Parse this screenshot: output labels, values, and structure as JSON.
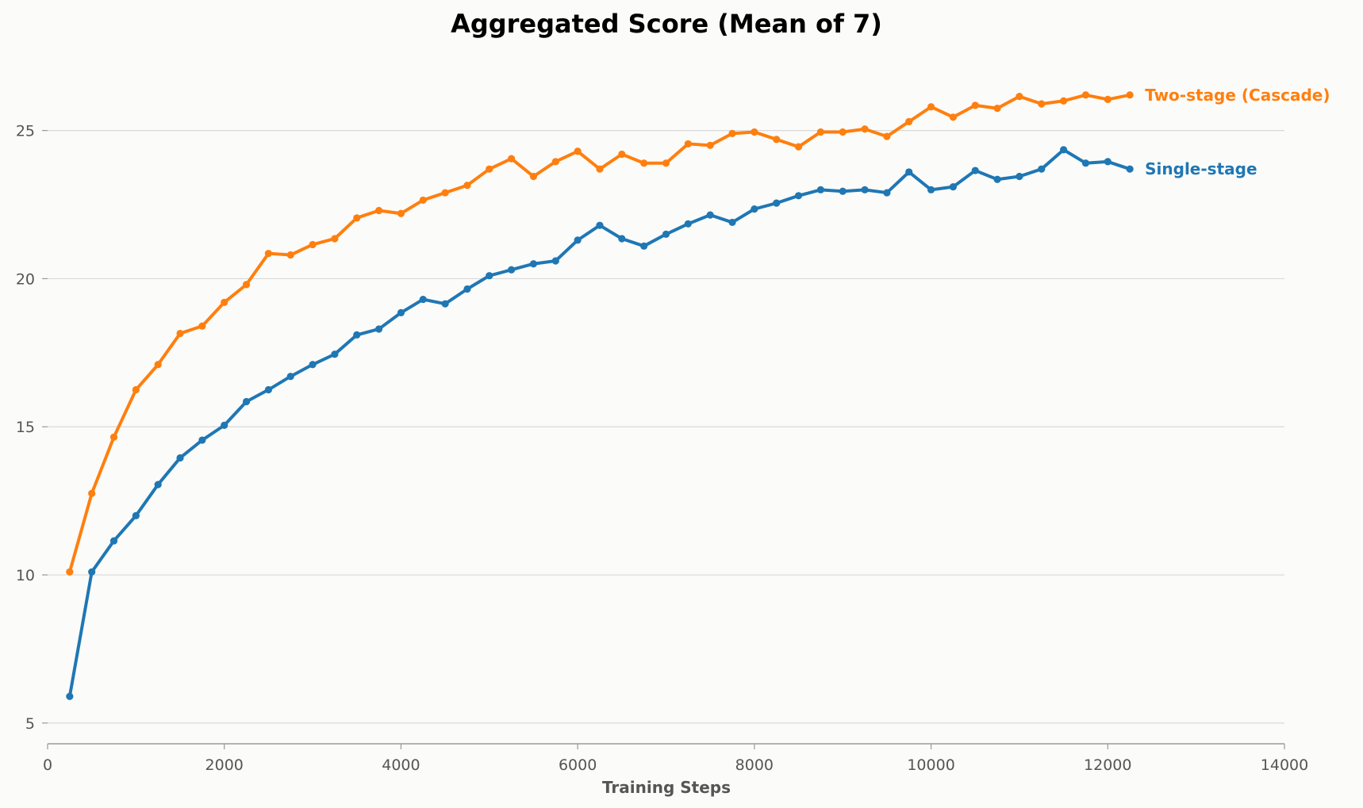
{
  "chart_data": {
    "type": "line",
    "title": "Aggregated Score (Mean of 7)",
    "xlabel": "Training Steps",
    "ylabel": "",
    "xlim": [
      0,
      14000
    ],
    "ylim": [
      4.3,
      27.8
    ],
    "xticks": [
      0,
      2000,
      4000,
      6000,
      8000,
      10000,
      12000,
      14000
    ],
    "yticks": [
      5,
      10,
      15,
      20,
      25
    ],
    "grid": "horizontal",
    "legend": "inline labels at right end of each line",
    "x": [
      250,
      500,
      750,
      1000,
      1250,
      1500,
      1750,
      2000,
      2250,
      2500,
      2750,
      3000,
      3250,
      3500,
      3750,
      4000,
      4250,
      4500,
      4750,
      5000,
      5250,
      5500,
      5750,
      6000,
      6250,
      6500,
      6750,
      7000,
      7250,
      7500,
      7750,
      8000,
      8250,
      8500,
      8750,
      9000,
      9250,
      9500,
      9750,
      10000,
      10250,
      10500,
      10750,
      11000,
      11250,
      11500,
      11750,
      12000,
      12250
    ],
    "series": [
      {
        "name": "Two-stage (Cascade)",
        "color": "#ff7f0e",
        "values": [
          10.1,
          12.75,
          14.65,
          16.25,
          17.1,
          18.15,
          18.4,
          19.2,
          19.8,
          20.85,
          20.8,
          21.15,
          21.35,
          22.05,
          22.3,
          22.2,
          22.65,
          22.9,
          23.15,
          23.7,
          24.05,
          23.45,
          23.95,
          24.3,
          23.7,
          24.2,
          23.9,
          23.9,
          24.55,
          24.5,
          24.9,
          24.95,
          24.7,
          24.45,
          24.95,
          24.95,
          25.05,
          24.8,
          25.3,
          25.8,
          25.45,
          25.85,
          25.75,
          26.15,
          25.9,
          26.0,
          26.2,
          26.05,
          26.2
        ]
      },
      {
        "name": "Single-stage",
        "color": "#1f77b4",
        "values": [
          5.9,
          10.1,
          11.15,
          12.0,
          13.05,
          13.95,
          14.55,
          15.05,
          15.85,
          16.25,
          16.7,
          17.1,
          17.45,
          18.1,
          18.3,
          18.85,
          19.3,
          19.15,
          19.65,
          20.1,
          20.3,
          20.5,
          20.6,
          21.3,
          21.8,
          21.35,
          21.1,
          21.5,
          21.85,
          22.15,
          21.9,
          22.35,
          22.55,
          22.8,
          23.0,
          22.95,
          23.0,
          22.9,
          23.6,
          23.0,
          23.1,
          23.65,
          23.35,
          23.45,
          23.7,
          24.35,
          23.9,
          23.95,
          23.7
        ]
      }
    ]
  }
}
